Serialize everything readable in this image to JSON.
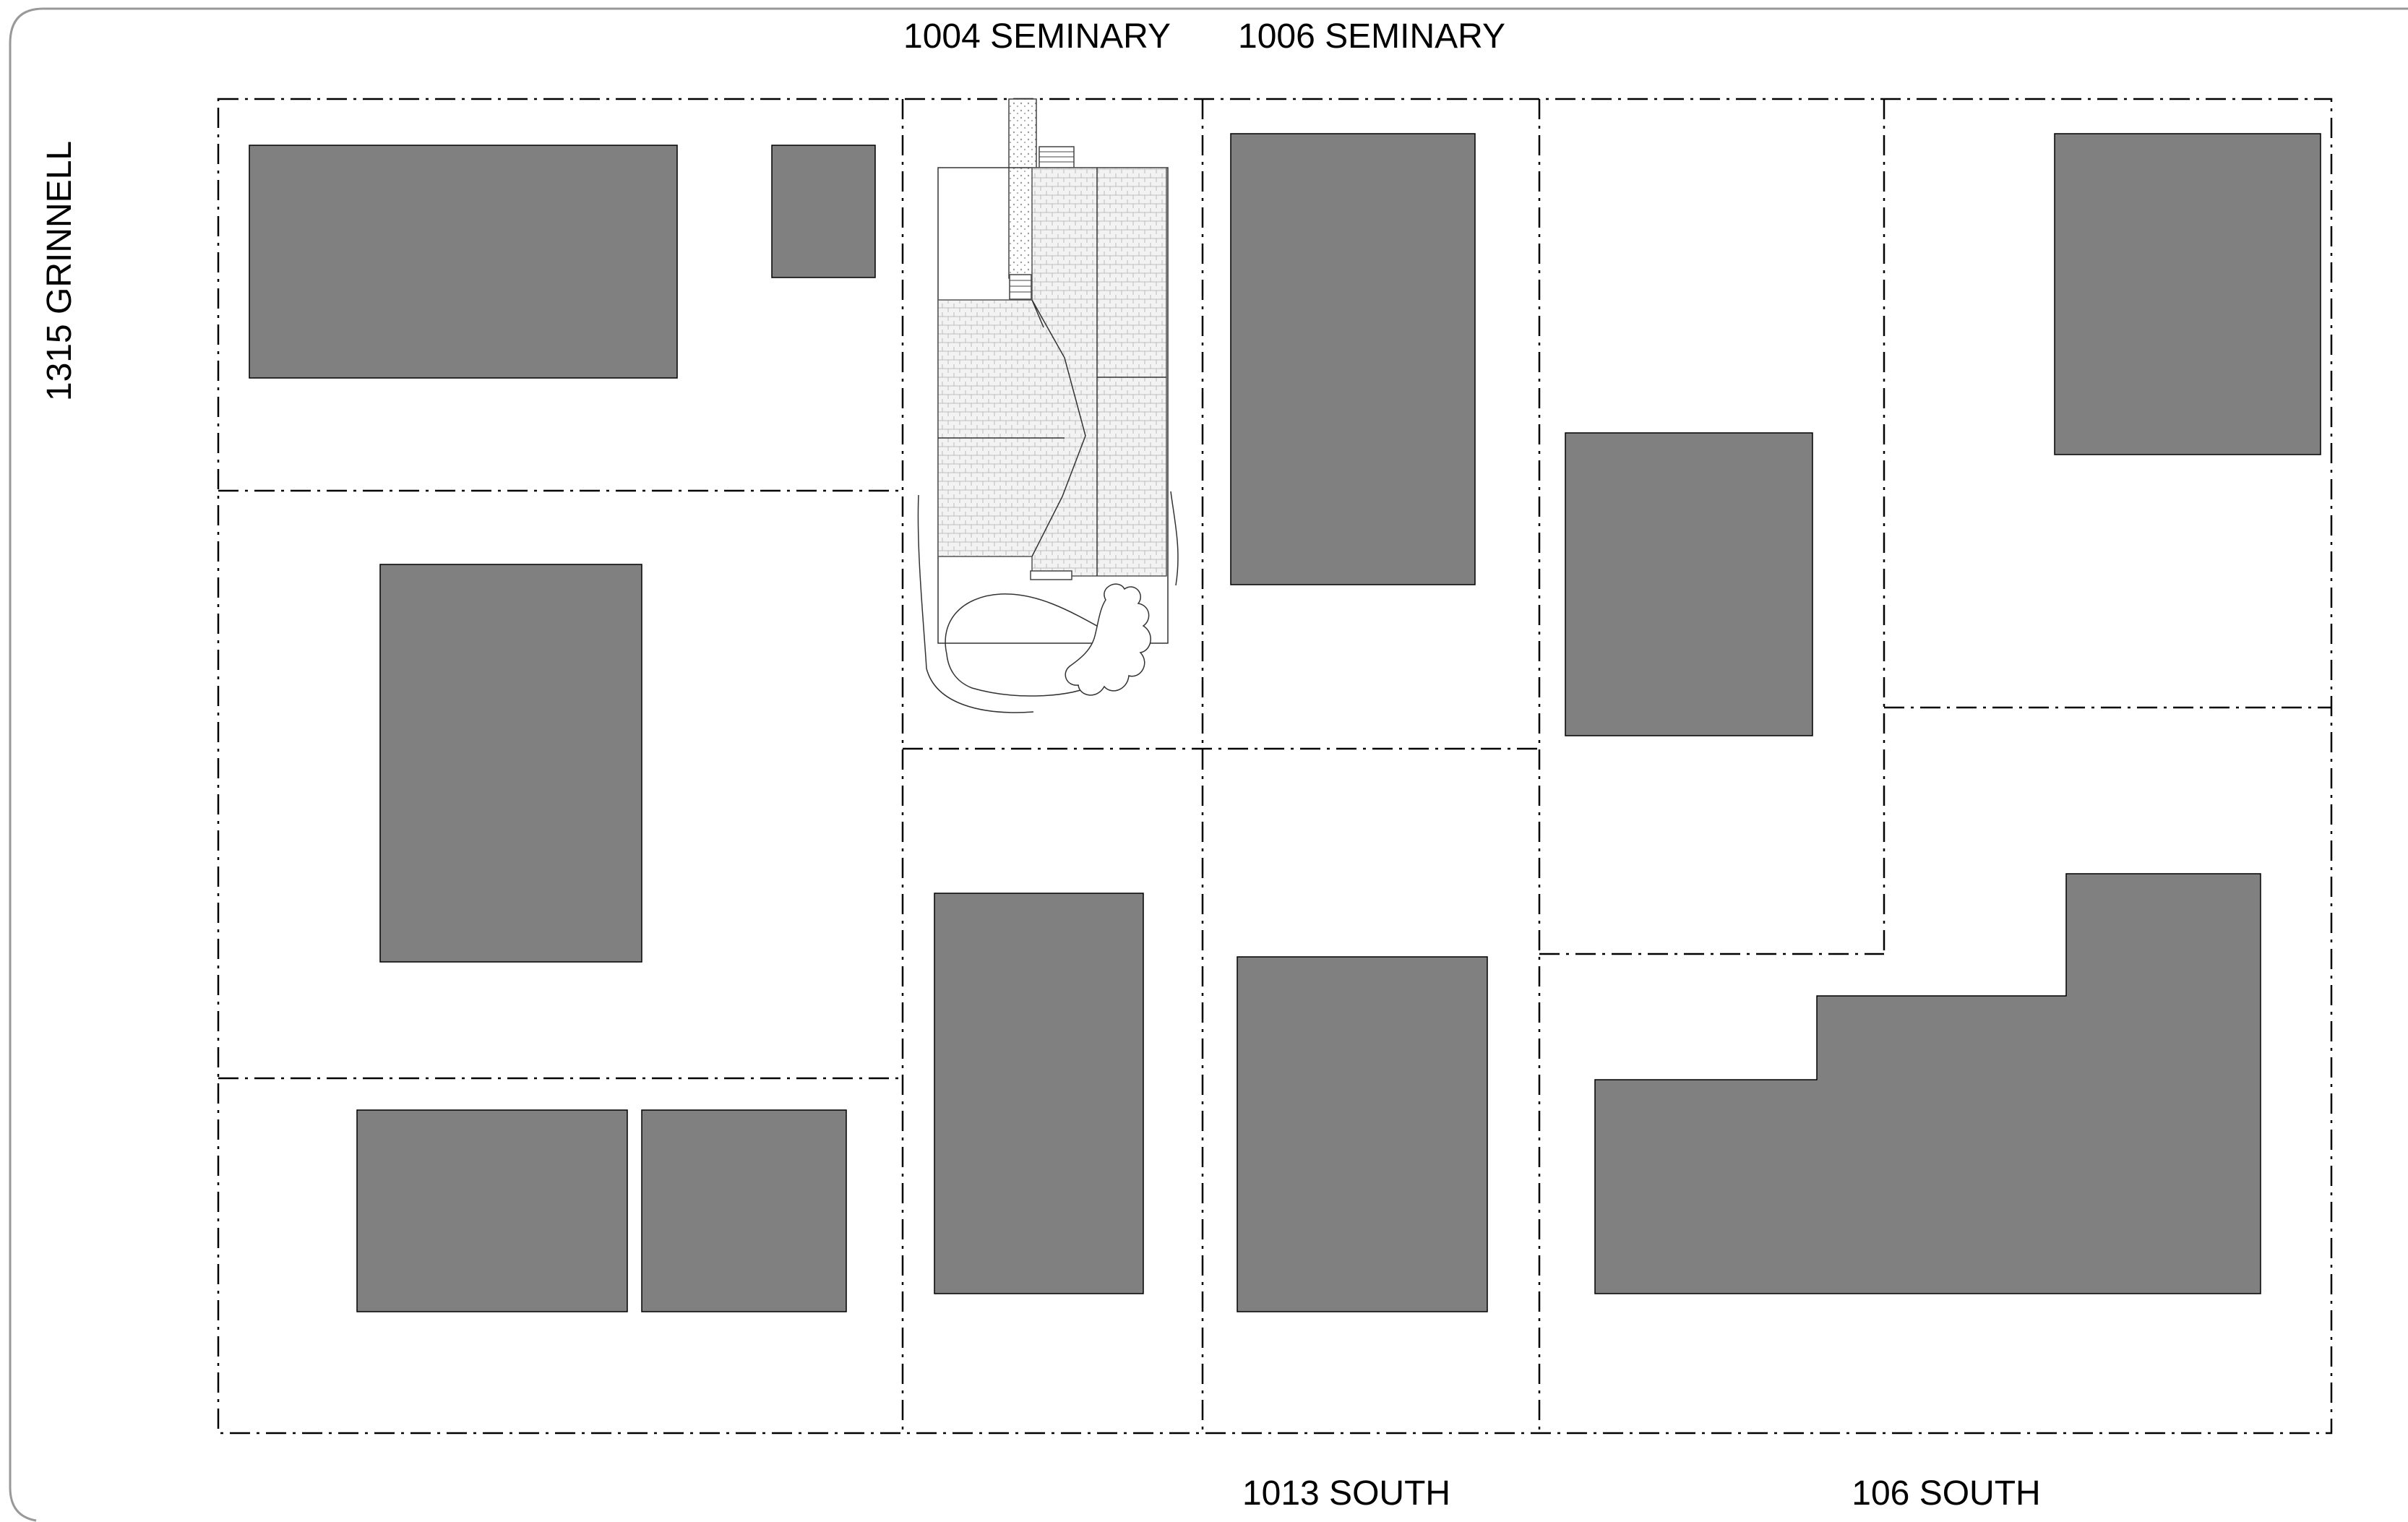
{
  "labels": {
    "top_left": "1004 SEMINARY",
    "top_right": "1006 SEMINARY",
    "left_side": "1315 GRINNELL",
    "bottom_left": "1013 SOUTH",
    "bottom_right": "106 SOUTH"
  },
  "colors": {
    "building_fill": "#808080",
    "lot_line": "#000000",
    "roof_texture": "#cfcfcf",
    "border": "#999999"
  }
}
